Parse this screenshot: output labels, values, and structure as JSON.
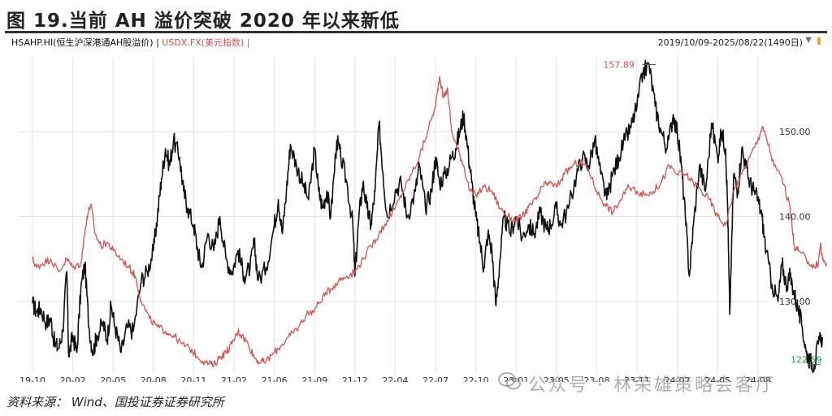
{
  "title": "图 19.当前 AH 溢价突破 2020 年以来新低",
  "legend": {
    "series1": "HSAHP.HI(恒生沪深港通AH股溢价)",
    "separator": " | ",
    "series2": "USDX.FX(美元指数) |"
  },
  "date_range": "2019/10/09-2025/08/22(1490日)",
  "source": "资料来源： Wind、国投证券证券研究所",
  "watermark": "公众号 · 林荣雄策略会客厅",
  "colors": {
    "series1": "#111111",
    "series2": "#d9534f",
    "grid": "#e3e3e3",
    "max_label": "#d9534f",
    "min_label": "#2e9e3e"
  },
  "chart_data": {
    "type": "line",
    "x_tick_labels": [
      "19-10",
      "20-02",
      "20-05",
      "20-08",
      "20-11",
      "21-02",
      "21-06",
      "21-09",
      "21-12",
      "22-04",
      "22-07",
      "22-10",
      "23-01",
      "23-05",
      "23-08",
      "23-11",
      "24-02",
      "24-05",
      "24-08"
    ],
    "y_tick_labels": [
      "130.00",
      "140.00",
      "150.00"
    ],
    "ylim": [
      121.5,
      158.8
    ],
    "grid": true,
    "max_annotation": "157.89",
    "min_annotation": "122.59",
    "series": [
      {
        "name": "HSAHP.HI(恒生沪深港通AH股溢价)",
        "color": "#111111",
        "values": [
          [
            0,
            129.8
          ],
          [
            0.1,
            128.8
          ],
          [
            0.2,
            129.2
          ],
          [
            0.35,
            127.5
          ],
          [
            0.45,
            128.0
          ],
          [
            0.55,
            125.0
          ],
          [
            0.65,
            124.5
          ],
          [
            0.75,
            126.5
          ],
          [
            0.85,
            133.5
          ],
          [
            0.9,
            123.5
          ],
          [
            1.0,
            126.0
          ],
          [
            1.1,
            124.0
          ],
          [
            1.2,
            131.5
          ],
          [
            1.3,
            134.5
          ],
          [
            1.4,
            127.0
          ],
          [
            1.5,
            124.0
          ],
          [
            1.6,
            126.0
          ],
          [
            1.75,
            127.5
          ],
          [
            1.85,
            125.5
          ],
          [
            1.95,
            129.5
          ],
          [
            2.05,
            127.0
          ],
          [
            2.2,
            124.0
          ],
          [
            2.35,
            127.0
          ],
          [
            2.5,
            126.5
          ],
          [
            2.7,
            132.5
          ],
          [
            2.85,
            133.5
          ],
          [
            3.0,
            136.0
          ],
          [
            3.1,
            140.0
          ],
          [
            3.2,
            144.5
          ],
          [
            3.3,
            148.0
          ],
          [
            3.4,
            146.0
          ],
          [
            3.5,
            149.0
          ],
          [
            3.65,
            147.0
          ],
          [
            3.75,
            143.0
          ],
          [
            3.85,
            141.0
          ],
          [
            4.0,
            139.0
          ],
          [
            4.1,
            136.0
          ],
          [
            4.2,
            134.0
          ],
          [
            4.35,
            138.0
          ],
          [
            4.5,
            136.0
          ],
          [
            4.65,
            140.0
          ],
          [
            4.8,
            135.0
          ],
          [
            4.95,
            133.5
          ],
          [
            5.1,
            136.0
          ],
          [
            5.25,
            133.0
          ],
          [
            5.4,
            134.0
          ],
          [
            5.5,
            137.0
          ],
          [
            5.6,
            132.5
          ],
          [
            5.8,
            134.0
          ],
          [
            6.0,
            139.0
          ],
          [
            6.1,
            142.0
          ],
          [
            6.2,
            138.0
          ],
          [
            6.3,
            143.0
          ],
          [
            6.4,
            148.5
          ],
          [
            6.55,
            146.0
          ],
          [
            6.7,
            144.0
          ],
          [
            6.85,
            142.0
          ],
          [
            7.0,
            148.0
          ],
          [
            7.1,
            143.0
          ],
          [
            7.2,
            141.0
          ],
          [
            7.3,
            143.0
          ],
          [
            7.4,
            140.0
          ],
          [
            7.55,
            149.0
          ],
          [
            7.65,
            147.0
          ],
          [
            7.8,
            144.0
          ],
          [
            7.95,
            139.0
          ],
          [
            8.0,
            133.0
          ],
          [
            8.1,
            140.0
          ],
          [
            8.2,
            144.0
          ],
          [
            8.3,
            141.0
          ],
          [
            8.4,
            139.0
          ],
          [
            8.5,
            143.0
          ],
          [
            8.6,
            151.0
          ],
          [
            8.7,
            145.0
          ],
          [
            8.8,
            140.0
          ],
          [
            9.0,
            143.0
          ],
          [
            9.15,
            144.0
          ],
          [
            9.3,
            140.0
          ],
          [
            9.5,
            143.0
          ],
          [
            9.6,
            146.0
          ],
          [
            9.75,
            141.0
          ],
          [
            9.9,
            143.0
          ],
          [
            10.0,
            147.0
          ],
          [
            10.1,
            144.0
          ],
          [
            10.25,
            145.0
          ],
          [
            10.4,
            147.0
          ],
          [
            10.5,
            148.0
          ],
          [
            10.6,
            150.0
          ],
          [
            10.7,
            152.0
          ],
          [
            10.8,
            148.0
          ],
          [
            10.9,
            144.0
          ],
          [
            11.0,
            140.0
          ],
          [
            11.1,
            137.0
          ],
          [
            11.2,
            134.0
          ],
          [
            11.3,
            138.0
          ],
          [
            11.4,
            136.0
          ],
          [
            11.5,
            129.5
          ],
          [
            11.6,
            135.0
          ],
          [
            11.7,
            140.0
          ],
          [
            11.85,
            138.0
          ],
          [
            12.0,
            140.0
          ],
          [
            12.15,
            137.5
          ],
          [
            12.3,
            139.0
          ],
          [
            12.45,
            138.0
          ],
          [
            12.6,
            140.5
          ],
          [
            12.75,
            138.5
          ],
          [
            12.85,
            139.0
          ],
          [
            13.0,
            141.0
          ],
          [
            13.1,
            139.0
          ],
          [
            13.3,
            141.0
          ],
          [
            13.5,
            145.0
          ],
          [
            13.65,
            147.0
          ],
          [
            13.8,
            146.0
          ],
          [
            13.95,
            149.0
          ],
          [
            14.1,
            145.0
          ],
          [
            14.25,
            142.0
          ],
          [
            14.4,
            145.0
          ],
          [
            14.55,
            147.0
          ],
          [
            14.7,
            149.0
          ],
          [
            14.85,
            150.5
          ],
          [
            15.0,
            153.0
          ],
          [
            15.15,
            157.0
          ],
          [
            15.3,
            157.89
          ],
          [
            15.45,
            153.0
          ],
          [
            15.6,
            150.0
          ],
          [
            15.75,
            148.0
          ],
          [
            15.9,
            152.0
          ],
          [
            16.0,
            150.0
          ],
          [
            16.1,
            146.0
          ],
          [
            16.2,
            140.0
          ],
          [
            16.3,
            133.0
          ],
          [
            16.4,
            139.0
          ],
          [
            16.55,
            146.0
          ],
          [
            16.7,
            143.0
          ],
          [
            16.85,
            151.0
          ],
          [
            17.0,
            147.0
          ],
          [
            17.1,
            150.0
          ],
          [
            17.2,
            148.0
          ],
          [
            17.25,
            141.0
          ],
          [
            17.3,
            128.5
          ],
          [
            17.4,
            145.0
          ],
          [
            17.5,
            143.0
          ],
          [
            17.6,
            148.0
          ],
          [
            17.7,
            146.0
          ],
          [
            17.8,
            144.0
          ],
          [
            17.9,
            143.0
          ],
          [
            18.0,
            142.0
          ],
          [
            18.1,
            140.0
          ],
          [
            18.2,
            136.0
          ],
          [
            18.35,
            132.0
          ],
          [
            18.5,
            130.0
          ],
          [
            18.6,
            134.5
          ],
          [
            18.7,
            132.0
          ],
          [
            18.8,
            133.0
          ],
          [
            18.9,
            131.0
          ],
          [
            19.0,
            129.0
          ],
          [
            19.1,
            127.0
          ],
          [
            19.2,
            124.0
          ],
          [
            19.3,
            123.0
          ],
          [
            19.4,
            122.59
          ],
          [
            19.5,
            125.0
          ],
          [
            19.6,
            125.8
          ]
        ]
      },
      {
        "name": "USDX.FX(美元指数)",
        "color": "#d9534f",
        "values": [
          [
            0,
            135.0
          ],
          [
            0.1,
            134.0
          ],
          [
            0.25,
            134.5
          ],
          [
            0.45,
            135.0
          ],
          [
            0.65,
            133.5
          ],
          [
            0.85,
            135.0
          ],
          [
            1.0,
            134.0
          ],
          [
            1.2,
            134.5
          ],
          [
            1.35,
            140.0
          ],
          [
            1.45,
            141.5
          ],
          [
            1.55,
            138.0
          ],
          [
            1.7,
            136.5
          ],
          [
            1.85,
            137.0
          ],
          [
            2.0,
            136.0
          ],
          [
            2.2,
            135.0
          ],
          [
            2.4,
            134.0
          ],
          [
            2.55,
            133.0
          ],
          [
            2.7,
            130.0
          ],
          [
            2.9,
            128.0
          ],
          [
            3.1,
            127.0
          ],
          [
            3.3,
            126.5
          ],
          [
            3.5,
            126.0
          ],
          [
            3.7,
            125.0
          ],
          [
            3.9,
            124.5
          ],
          [
            4.1,
            123.5
          ],
          [
            4.3,
            122.8
          ],
          [
            4.5,
            122.5
          ],
          [
            4.65,
            123.5
          ],
          [
            4.8,
            124.0
          ],
          [
            4.95,
            125.0
          ],
          [
            5.1,
            126.5
          ],
          [
            5.2,
            126.0
          ],
          [
            5.35,
            125.0
          ],
          [
            5.5,
            123.5
          ],
          [
            5.65,
            122.8
          ],
          [
            5.8,
            123.0
          ],
          [
            6.0,
            124.0
          ],
          [
            6.2,
            125.0
          ],
          [
            6.4,
            126.0
          ],
          [
            6.6,
            127.0
          ],
          [
            6.8,
            128.5
          ],
          [
            7.0,
            129.0
          ],
          [
            7.2,
            130.5
          ],
          [
            7.4,
            131.5
          ],
          [
            7.6,
            132.5
          ],
          [
            7.8,
            133.0
          ],
          [
            8.0,
            133.5
          ],
          [
            8.2,
            135.0
          ],
          [
            8.4,
            136.5
          ],
          [
            8.6,
            138.0
          ],
          [
            8.8,
            139.5
          ],
          [
            9.0,
            141.0
          ],
          [
            9.2,
            143.0
          ],
          [
            9.4,
            145.0
          ],
          [
            9.6,
            147.0
          ],
          [
            9.8,
            150.0
          ],
          [
            10.0,
            153.0
          ],
          [
            10.1,
            156.5
          ],
          [
            10.2,
            154.0
          ],
          [
            10.3,
            155.0
          ],
          [
            10.4,
            150.0
          ],
          [
            10.55,
            148.0
          ],
          [
            10.7,
            146.0
          ],
          [
            10.85,
            143.0
          ],
          [
            11.0,
            142.5
          ],
          [
            11.2,
            143.5
          ],
          [
            11.4,
            143.0
          ],
          [
            11.6,
            141.0
          ],
          [
            11.8,
            140.0
          ],
          [
            12.0,
            139.5
          ],
          [
            12.15,
            140.0
          ],
          [
            12.3,
            141.0
          ],
          [
            12.5,
            142.0
          ],
          [
            12.65,
            143.5
          ],
          [
            12.8,
            144.0
          ],
          [
            13.0,
            143.5
          ],
          [
            13.2,
            145.0
          ],
          [
            13.4,
            146.0
          ],
          [
            13.6,
            146.5
          ],
          [
            13.8,
            145.5
          ],
          [
            14.0,
            143.0
          ],
          [
            14.2,
            141.5
          ],
          [
            14.4,
            140.5
          ],
          [
            14.6,
            142.0
          ],
          [
            14.8,
            143.5
          ],
          [
            15.0,
            143.0
          ],
          [
            15.2,
            142.5
          ],
          [
            15.4,
            143.0
          ],
          [
            15.6,
            144.0
          ],
          [
            15.8,
            146.0
          ],
          [
            16.0,
            145.0
          ],
          [
            16.2,
            145.0
          ],
          [
            16.4,
            144.0
          ],
          [
            16.6,
            143.0
          ],
          [
            16.8,
            142.0
          ],
          [
            17.0,
            140.0
          ],
          [
            17.2,
            139.0
          ],
          [
            17.4,
            143.0
          ],
          [
            17.6,
            145.0
          ],
          [
            17.8,
            147.0
          ],
          [
            18.0,
            149.0
          ],
          [
            18.1,
            150.5
          ],
          [
            18.2,
            149.5
          ],
          [
            18.4,
            146.0
          ],
          [
            18.6,
            144.5
          ],
          [
            18.8,
            141.0
          ],
          [
            18.9,
            136.5
          ],
          [
            19.0,
            136.0
          ],
          [
            19.2,
            135.0
          ],
          [
            19.4,
            134.0
          ],
          [
            19.5,
            134.5
          ],
          [
            19.55,
            136.8
          ],
          [
            19.6,
            135.0
          ],
          [
            19.7,
            134.5
          ]
        ]
      }
    ]
  }
}
